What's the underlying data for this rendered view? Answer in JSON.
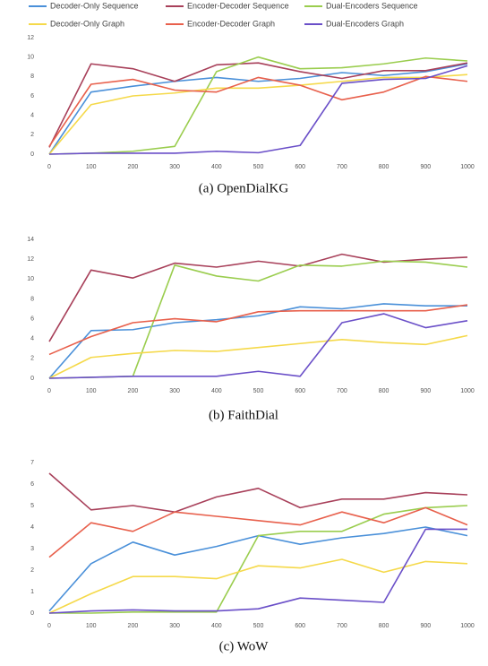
{
  "chart_data": [
    {
      "type": "line",
      "title": "(a) OpenDialKG",
      "x": [
        0,
        100,
        200,
        300,
        400,
        500,
        600,
        700,
        800,
        900,
        1000
      ],
      "xlim": [
        0,
        1000
      ],
      "xticks": [
        0,
        100,
        200,
        300,
        400,
        500,
        600,
        700,
        800,
        900,
        1000
      ],
      "ylim": [
        0,
        12
      ],
      "yticks": [
        0,
        2,
        4,
        6,
        8,
        10,
        12
      ],
      "grid": false,
      "series": [
        {
          "name": "Decoder-Only Sequence",
          "color": "#4a90d9",
          "values": [
            0,
            6.4,
            7.0,
            7.5,
            7.9,
            7.5,
            7.8,
            8.4,
            8.1,
            8.5,
            9.3
          ]
        },
        {
          "name": "Encoder-Decoder Sequence",
          "color": "#a8405a",
          "values": [
            0.7,
            9.3,
            8.8,
            7.5,
            9.2,
            9.4,
            8.5,
            7.8,
            8.6,
            8.6,
            9.4
          ]
        },
        {
          "name": "Dual-Encoders Sequence",
          "color": "#9acd4e",
          "values": [
            0,
            0.1,
            0.3,
            0.8,
            8.5,
            10.0,
            8.8,
            8.9,
            9.3,
            9.9,
            9.6
          ]
        },
        {
          "name": "Decoder-Only Graph",
          "color": "#f5d94a",
          "values": [
            0,
            5.1,
            6.0,
            6.3,
            6.8,
            6.8,
            7.1,
            7.5,
            7.9,
            7.9,
            8.2
          ]
        },
        {
          "name": "Encoder-Decoder Graph",
          "color": "#e8604c",
          "values": [
            0.8,
            7.2,
            7.7,
            6.6,
            6.4,
            7.9,
            7.1,
            5.6,
            6.4,
            8.0,
            7.5
          ]
        },
        {
          "name": "Dual-Encoders Graph",
          "color": "#6a4fc8",
          "values": [
            0,
            0.1,
            0.1,
            0.1,
            0.3,
            0.15,
            0.9,
            7.3,
            7.7,
            7.8,
            9.1
          ]
        }
      ]
    },
    {
      "type": "line",
      "title": "(b) FaithDial",
      "x": [
        0,
        100,
        200,
        300,
        400,
        500,
        600,
        700,
        800,
        900,
        1000
      ],
      "xlim": [
        0,
        1000
      ],
      "xticks": [
        0,
        100,
        200,
        300,
        400,
        500,
        600,
        700,
        800,
        900,
        1000
      ],
      "ylim": [
        0,
        14
      ],
      "yticks": [
        0,
        2,
        4,
        6,
        8,
        10,
        12,
        14
      ],
      "grid": false,
      "series": [
        {
          "name": "Decoder-Only Sequence",
          "color": "#4a90d9",
          "values": [
            0,
            4.8,
            4.9,
            5.6,
            5.9,
            6.3,
            7.2,
            7.0,
            7.5,
            7.3,
            7.3
          ]
        },
        {
          "name": "Encoder-Decoder Sequence",
          "color": "#a8405a",
          "values": [
            3.7,
            10.9,
            10.1,
            11.6,
            11.2,
            11.8,
            11.3,
            12.5,
            11.7,
            12.0,
            12.2
          ]
        },
        {
          "name": "Dual-Encoders Sequence",
          "color": "#9acd4e",
          "values": [
            0,
            0.1,
            0.2,
            11.4,
            10.3,
            9.8,
            11.4,
            11.3,
            11.8,
            11.7,
            11.2
          ]
        },
        {
          "name": "Decoder-Only Graph",
          "color": "#f5d94a",
          "values": [
            0,
            2.1,
            2.5,
            2.8,
            2.7,
            3.1,
            3.5,
            3.9,
            3.6,
            3.4,
            4.3
          ]
        },
        {
          "name": "Encoder-Decoder Graph",
          "color": "#e8604c",
          "values": [
            2.4,
            4.2,
            5.6,
            6.0,
            5.7,
            6.7,
            6.8,
            6.8,
            6.8,
            6.8,
            7.4
          ]
        },
        {
          "name": "Dual-Encoders Graph",
          "color": "#6a4fc8",
          "values": [
            0,
            0.1,
            0.2,
            0.2,
            0.2,
            0.7,
            0.2,
            5.6,
            6.5,
            5.1,
            5.8
          ]
        }
      ]
    },
    {
      "type": "line",
      "title": "(c) WoW",
      "x": [
        0,
        100,
        200,
        300,
        400,
        500,
        600,
        700,
        800,
        900,
        1000
      ],
      "xlim": [
        0,
        1000
      ],
      "xticks": [
        0,
        100,
        200,
        300,
        400,
        500,
        600,
        700,
        800,
        900,
        1000
      ],
      "ylim": [
        0,
        7
      ],
      "yticks": [
        0,
        1,
        2,
        3,
        4,
        5,
        6,
        7
      ],
      "grid": false,
      "series": [
        {
          "name": "Decoder-Only Sequence",
          "color": "#4a90d9",
          "values": [
            0.1,
            2.3,
            3.3,
            2.7,
            3.1,
            3.6,
            3.2,
            3.5,
            3.7,
            4.0,
            3.6
          ]
        },
        {
          "name": "Encoder-Decoder Sequence",
          "color": "#a8405a",
          "values": [
            6.5,
            4.8,
            5.0,
            4.7,
            5.4,
            5.8,
            4.9,
            5.3,
            5.3,
            5.6,
            5.5
          ]
        },
        {
          "name": "Dual-Encoders Sequence",
          "color": "#9acd4e",
          "values": [
            0,
            0,
            0.05,
            0.05,
            0.05,
            3.6,
            3.8,
            3.8,
            4.6,
            4.9,
            5.0
          ]
        },
        {
          "name": "Decoder-Only Graph",
          "color": "#f5d94a",
          "values": [
            0,
            0.9,
            1.7,
            1.7,
            1.6,
            2.2,
            2.1,
            2.5,
            1.9,
            2.4,
            2.3
          ]
        },
        {
          "name": "Encoder-Decoder Graph",
          "color": "#e8604c",
          "values": [
            2.6,
            4.2,
            3.8,
            4.7,
            4.5,
            4.3,
            4.1,
            4.7,
            4.2,
            4.9,
            4.1
          ]
        },
        {
          "name": "Dual-Encoders Graph",
          "color": "#6a4fc8",
          "values": [
            0,
            0.1,
            0.15,
            0.1,
            0.1,
            0.2,
            0.7,
            0.6,
            0.5,
            3.9,
            3.9
          ]
        }
      ]
    }
  ]
}
